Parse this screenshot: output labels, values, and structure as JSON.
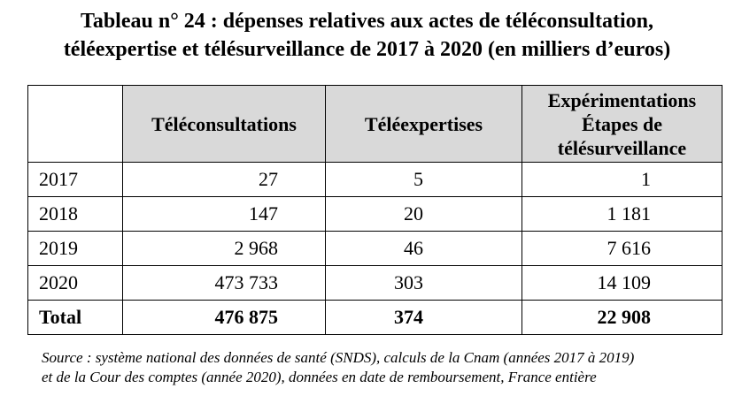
{
  "title": {
    "line1": "Tableau n° 24 : dépenses relatives aux actes de téléconsultation,",
    "line2": "téléexpertise et télésurveillance de 2017 à 2020 (en milliers d’euros)"
  },
  "table": {
    "headers": {
      "col1": "Téléconsultations",
      "col2": "Téléexpertises",
      "col3_line1": "Expérimentations",
      "col3_line2": "Étapes de",
      "col3_line3": "télésurveillance"
    },
    "rows": [
      {
        "year": "2017",
        "teleconsultations": "27",
        "teleexpertises": "5",
        "telesurveillance": "1"
      },
      {
        "year": "2018",
        "teleconsultations": "147",
        "teleexpertises": "20",
        "telesurveillance": "1 181"
      },
      {
        "year": "2019",
        "teleconsultations": "2 968",
        "teleexpertises": "46",
        "telesurveillance": "7 616"
      },
      {
        "year": "2020",
        "teleconsultations": "473 733",
        "teleexpertises": "303",
        "telesurveillance": "14 109"
      }
    ],
    "total": {
      "label": "Total",
      "teleconsultations": "476 875",
      "teleexpertises": "374",
      "telesurveillance": "22 908"
    }
  },
  "source": {
    "line1": "Source : système national des données de santé (SNDS), calculs de la Cnam (années 2017 à 2019)",
    "line2": "et de la Cour des comptes (année 2020), données en date de remboursement, France entière"
  }
}
